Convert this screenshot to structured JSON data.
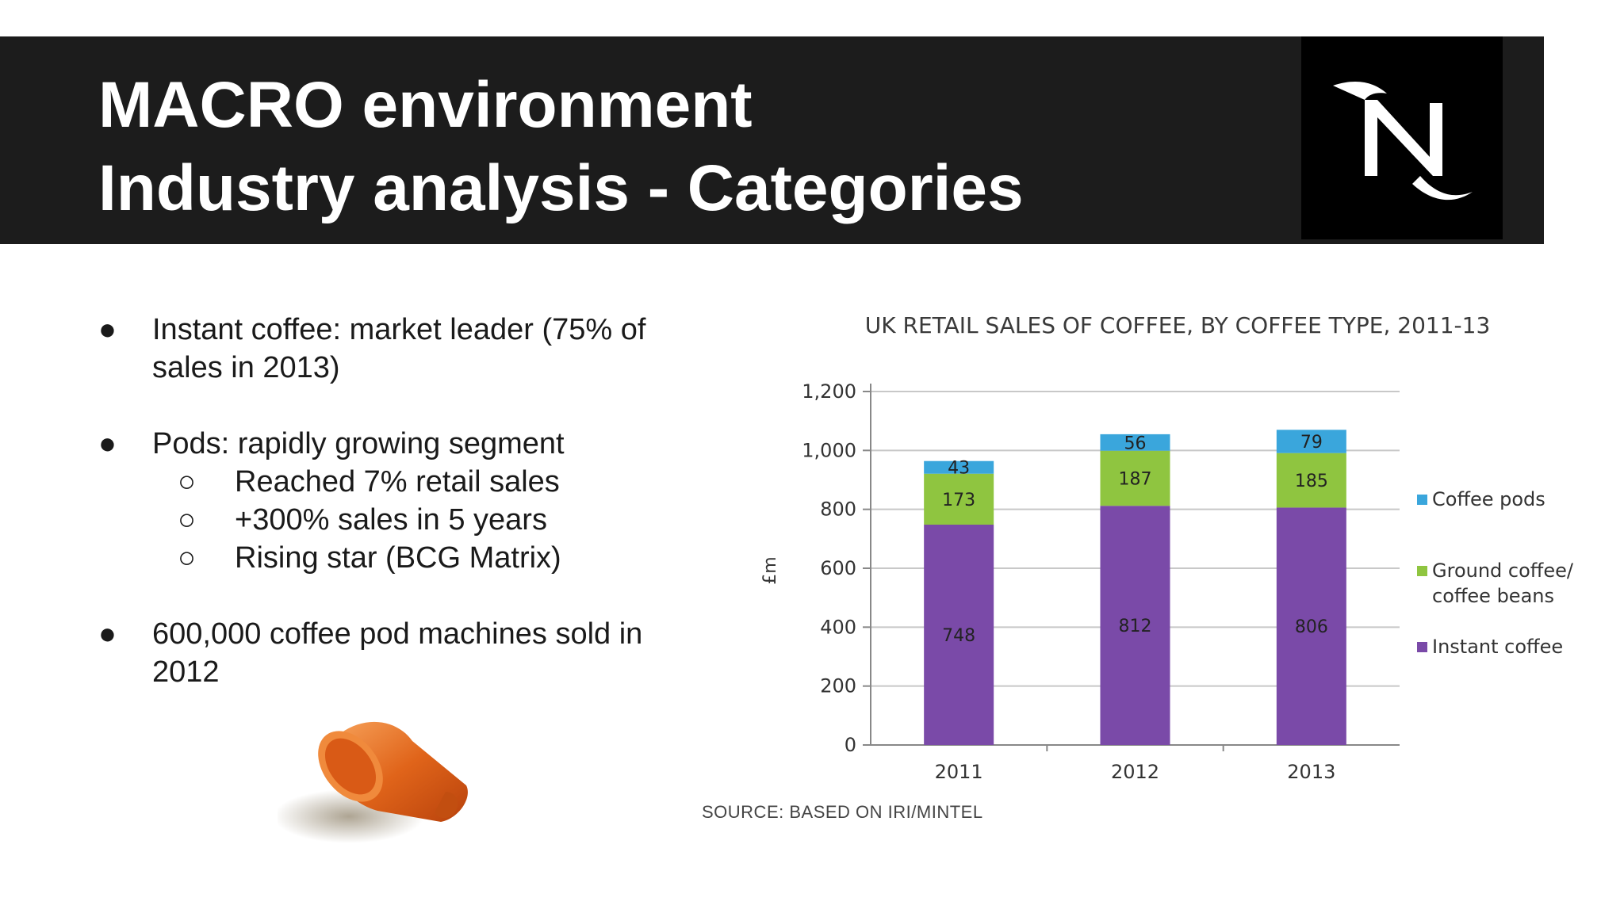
{
  "slide": {
    "title_line1": "MACRO environment",
    "title_line2": "Industry analysis - Categories",
    "logo": "nespresso-n-logo",
    "bullet_symbol": "●",
    "sub_bullet_symbol": "○",
    "bullets": [
      {
        "text_line1": "Instant coffee: market leader (75% of",
        "text_line2": "sales in 2013)"
      },
      {
        "text": "Pods: rapidly growing segment",
        "sub": [
          "Reached 7% retail sales",
          "+300% sales in 5 years",
          "Rising star (BCG Matrix)"
        ]
      },
      {
        "text_line1": "600,000 coffee pod machines sold in",
        "text_line2": "2012"
      }
    ],
    "image": "coffee-capsule"
  },
  "chart_data": {
    "type": "bar",
    "stacked": true,
    "title": "UK RETAIL SALES OF COFFEE, BY COFFEE TYPE, 2011-13",
    "ylabel": "£m",
    "ylim": [
      0,
      1200
    ],
    "yticks": [
      "0",
      "200",
      "400",
      "600",
      "800",
      "1,000",
      "1,200"
    ],
    "grid": true,
    "legend_position": "right",
    "categories": [
      "2011",
      "2012",
      "2013"
    ],
    "series": [
      {
        "name": "Instant coffee",
        "color": "#7a4aa8",
        "values": [
          748,
          812,
          806
        ]
      },
      {
        "name": "Ground coffee/ coffee beans",
        "legend_line1": "Ground coffee/",
        "legend_line2": "coffee beans",
        "color": "#8fc540",
        "values": [
          173,
          187,
          185
        ]
      },
      {
        "name": "Coffee pods",
        "color": "#3aa6dc",
        "values": [
          43,
          56,
          79
        ]
      }
    ],
    "source": "SOURCE: BASED ON IRI/MINTEL"
  }
}
